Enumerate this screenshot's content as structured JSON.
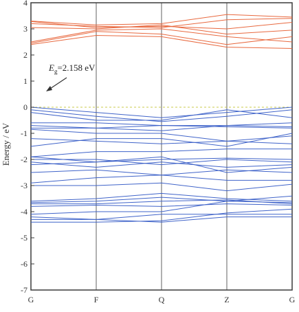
{
  "chart_data": {
    "type": "line",
    "title": "",
    "xlabel": "",
    "ylabel": "Energy / eV",
    "ylim": [
      -7,
      4
    ],
    "yticks": [
      "4",
      "3",
      "2",
      "1",
      "0",
      "-1",
      "-2",
      "-3",
      "-4",
      "-5",
      "-6",
      "-7"
    ],
    "kpoints": [
      "G",
      "F",
      "Q",
      "Z",
      "G"
    ],
    "kpoint_positions": [
      0,
      1,
      2,
      3,
      4
    ],
    "fermi_level": 0,
    "grid": "vertical lines at high-symmetry points",
    "annotation": {
      "symbol": "E",
      "subscript": "g",
      "text": "=2.158 eV"
    },
    "colors": {
      "conduction": "#e8683e",
      "valence": "#3f63c9",
      "fermi": "#c8c84a",
      "frame": "#3a3a3a",
      "arrow": "#333333"
    },
    "series": [
      {
        "band": "conduction",
        "values": [
          3.3,
          3.15,
          3.2,
          3.55,
          3.45
        ]
      },
      {
        "band": "conduction",
        "values": [
          3.28,
          3.05,
          3.1,
          3.0,
          3.25
        ]
      },
      {
        "band": "conduction",
        "values": [
          3.2,
          3.1,
          3.05,
          3.35,
          3.4
        ]
      },
      {
        "band": "conduction",
        "values": [
          3.05,
          3.0,
          3.15,
          2.8,
          2.95
        ]
      },
      {
        "band": "conduction",
        "values": [
          2.5,
          2.95,
          3.0,
          2.7,
          2.5
        ]
      },
      {
        "band": "conduction",
        "values": [
          2.45,
          2.9,
          2.8,
          2.4,
          2.7
        ]
      },
      {
        "band": "conduction",
        "values": [
          2.4,
          2.75,
          2.7,
          2.3,
          2.25
        ]
      },
      {
        "band": "valence",
        "values": [
          0.0,
          -0.2,
          -0.4,
          -0.2,
          0.0
        ]
      },
      {
        "band": "valence",
        "values": [
          -0.1,
          -0.35,
          -0.55,
          -0.35,
          -0.1
        ]
      },
      {
        "band": "valence",
        "values": [
          -0.2,
          -0.5,
          -0.5,
          -0.1,
          -0.4
        ]
      },
      {
        "band": "valence",
        "values": [
          -0.6,
          -0.6,
          -0.7,
          -0.7,
          -0.6
        ]
      },
      {
        "band": "valence",
        "values": [
          -0.7,
          -0.8,
          -0.7,
          -0.75,
          -0.8
        ]
      },
      {
        "band": "valence",
        "values": [
          -0.8,
          -0.8,
          -0.9,
          -0.7,
          -0.75
        ]
      },
      {
        "band": "valence",
        "values": [
          -0.85,
          -1.0,
          -1.0,
          -1.3,
          -1.1
        ]
      },
      {
        "band": "valence",
        "values": [
          -1.2,
          -1.3,
          -1.4,
          -1.3,
          -1.4
        ]
      },
      {
        "band": "valence",
        "values": [
          -1.5,
          -1.2,
          -1.2,
          -1.5,
          -1.0
        ]
      },
      {
        "band": "valence",
        "values": [
          -1.9,
          -1.7,
          -1.7,
          -1.6,
          -1.6
        ]
      },
      {
        "band": "valence",
        "values": [
          -1.9,
          -2.1,
          -2.0,
          -1.95,
          -2.0
        ]
      },
      {
        "band": "valence",
        "values": [
          -2.0,
          -2.0,
          -2.2,
          -2.0,
          -2.1
        ]
      },
      {
        "band": "valence",
        "values": [
          -2.1,
          -2.3,
          -2.1,
          -2.3,
          -2.2
        ]
      },
      {
        "band": "valence",
        "values": [
          -2.2,
          -2.1,
          -1.9,
          -2.5,
          -2.3
        ]
      },
      {
        "band": "valence",
        "values": [
          -2.5,
          -2.4,
          -2.6,
          -2.4,
          -2.5
        ]
      },
      {
        "band": "valence",
        "values": [
          -2.9,
          -2.7,
          -2.6,
          -2.8,
          -2.8
        ]
      },
      {
        "band": "valence",
        "values": [
          -3.0,
          -3.0,
          -2.9,
          -3.2,
          -2.95
        ]
      },
      {
        "band": "valence",
        "values": [
          -3.6,
          -3.5,
          -3.3,
          -3.5,
          -3.6
        ]
      },
      {
        "band": "valence",
        "values": [
          -3.65,
          -3.6,
          -3.45,
          -3.6,
          -3.65
        ]
      },
      {
        "band": "valence",
        "values": [
          -3.7,
          -3.7,
          -3.6,
          -3.55,
          -3.7
        ]
      },
      {
        "band": "valence",
        "values": [
          -3.8,
          -3.75,
          -3.8,
          -3.7,
          -3.75
        ]
      },
      {
        "band": "valence",
        "values": [
          -4.1,
          -4.0,
          -4.0,
          -3.6,
          -3.4
        ]
      },
      {
        "band": "valence",
        "values": [
          -4.2,
          -4.3,
          -4.1,
          -4.1,
          -4.1
        ]
      },
      {
        "band": "valence",
        "values": [
          -4.3,
          -4.3,
          -4.4,
          -4.2,
          -4.2
        ]
      },
      {
        "band": "valence",
        "values": [
          -4.4,
          -4.4,
          -4.35,
          -4.05,
          -3.9
        ]
      }
    ]
  }
}
